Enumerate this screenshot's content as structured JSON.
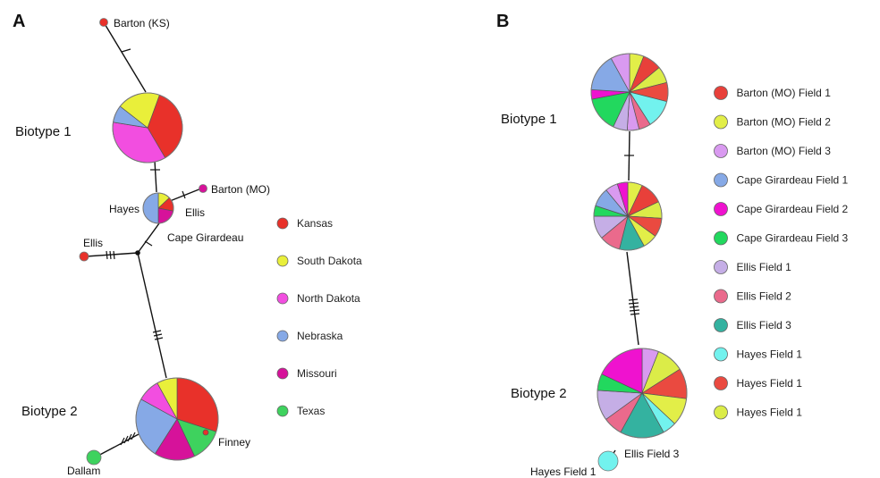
{
  "panel_a": {
    "letter": "A",
    "biotype1_label": "Biotype 1",
    "biotype2_label": "Biotype 2",
    "node_labels": {
      "barton_ks": "Barton (KS)",
      "barton_mo": "Barton (MO)",
      "hayes": "Hayes",
      "ellis_center": "Ellis",
      "cape_girardeau": "Cape Girardeau",
      "ellis_left": "Ellis",
      "finney": "Finney",
      "dallam": "Dallam"
    },
    "legend": [
      {
        "label": "Kansas",
        "color": "#e8312a"
      },
      {
        "label": "South Dakota",
        "color": "#e9ef3a"
      },
      {
        "label": "North Dakota",
        "color": "#f24ee0"
      },
      {
        "label": "Nebraska",
        "color": "#86a9e6"
      },
      {
        "label": "Missouri",
        "color": "#d6129a"
      },
      {
        "label": "Texas",
        "color": "#3ed25e"
      }
    ],
    "nodes": {
      "biotype1": {
        "slices": [
          {
            "state": "Kansas",
            "fraction": 0.36
          },
          {
            "state": "North Dakota",
            "fraction": 0.36
          },
          {
            "state": "Nebraska",
            "fraction": 0.08
          },
          {
            "state": "South Dakota",
            "fraction": 0.2
          }
        ]
      },
      "center": {
        "slices": [
          {
            "state": "South Dakota",
            "fraction": 0.13
          },
          {
            "state": "Kansas",
            "fraction": 0.15
          },
          {
            "state": "Missouri",
            "fraction": 0.22
          },
          {
            "state": "Nebraska",
            "fraction": 0.5
          }
        ]
      },
      "biotype2": {
        "slices": [
          {
            "state": "Kansas",
            "fraction": 0.3
          },
          {
            "state": "Texas",
            "fraction": 0.13
          },
          {
            "state": "Missouri",
            "fraction": 0.16
          },
          {
            "state": "Nebraska",
            "fraction": 0.24
          },
          {
            "state": "North Dakota",
            "fraction": 0.09
          },
          {
            "state": "South Dakota",
            "fraction": 0.08
          }
        ]
      },
      "barton_ks": {
        "color": "#e8312a"
      },
      "barton_mo": {
        "color": "#d6129a"
      },
      "ellis_left": {
        "color": "#e8312a"
      },
      "dallam": {
        "color": "#3ed25e"
      },
      "finney": {
        "color": "#e8312a"
      }
    }
  },
  "panel_b": {
    "letter": "B",
    "biotype1_label": "Biotype 1",
    "biotype2_label": "Biotype 2",
    "node_labels": {
      "ellis_field3": "Ellis Field 3",
      "hayes_field1": "Hayes Field 1"
    },
    "legend": [
      {
        "label": "Barton (MO) Field 1",
        "color": "#e8403a"
      },
      {
        "label": "Barton (MO) Field 2",
        "color": "#e2ee48"
      },
      {
        "label": "Barton (MO) Field 3",
        "color": "#d99af0"
      },
      {
        "label": "Cape Girardeau Field 1",
        "color": "#86a9e6"
      },
      {
        "label": "Cape Girardeau Field 2",
        "color": "#ef12cf"
      },
      {
        "label": "Cape Girardeau Field 3",
        "color": "#22d85e"
      },
      {
        "label": "Ellis Field 1",
        "color": "#c5aee6"
      },
      {
        "label": "Ellis Field 2",
        "color": "#ea6a8c"
      },
      {
        "label": "Ellis Field 3",
        "color": "#34b2a0"
      },
      {
        "label": "Hayes Field 1",
        "color": "#72f2ee"
      },
      {
        "label": "Hayes Field 1",
        "color": "#ea4a40"
      },
      {
        "label": "Hayes Field 1",
        "color": "#dbec48"
      }
    ],
    "nodes": {
      "top": {
        "slices": [
          {
            "color": "#e2ee48",
            "fraction": 0.06
          },
          {
            "color": "#e8403a",
            "fraction": 0.08
          },
          {
            "color": "#dbec48",
            "fraction": 0.07
          },
          {
            "color": "#ea4a40",
            "fraction": 0.08
          },
          {
            "color": "#72f2ee",
            "fraction": 0.12
          },
          {
            "color": "#ea6a8c",
            "fraction": 0.05
          },
          {
            "color": "#d99af0",
            "fraction": 0.05
          },
          {
            "color": "#c5aee6",
            "fraction": 0.06
          },
          {
            "color": "#22d85e",
            "fraction": 0.15
          },
          {
            "color": "#ef12cf",
            "fraction": 0.04
          },
          {
            "color": "#86a9e6",
            "fraction": 0.16
          },
          {
            "color": "#d99af0",
            "fraction": 0.08
          }
        ]
      },
      "middle": {
        "slices": [
          {
            "color": "#e2ee48",
            "fraction": 0.07
          },
          {
            "color": "#e8403a",
            "fraction": 0.11
          },
          {
            "color": "#dbec48",
            "fraction": 0.08
          },
          {
            "color": "#ea4a40",
            "fraction": 0.09
          },
          {
            "color": "#e2ee48",
            "fraction": 0.07
          },
          {
            "color": "#34b2a0",
            "fraction": 0.12
          },
          {
            "color": "#ea6a8c",
            "fraction": 0.1
          },
          {
            "color": "#c5aee6",
            "fraction": 0.11
          },
          {
            "color": "#22d85e",
            "fraction": 0.05
          },
          {
            "color": "#86a9e6",
            "fraction": 0.09
          },
          {
            "color": "#d99af0",
            "fraction": 0.06
          },
          {
            "color": "#ef12cf",
            "fraction": 0.05
          }
        ]
      },
      "bottom": {
        "slices": [
          {
            "color": "#d99af0",
            "fraction": 0.06
          },
          {
            "color": "#dbec48",
            "fraction": 0.1
          },
          {
            "color": "#ea4a40",
            "fraction": 0.11
          },
          {
            "color": "#e2ee48",
            "fraction": 0.1
          },
          {
            "color": "#72f2ee",
            "fraction": 0.05
          },
          {
            "color": "#34b2a0",
            "fraction": 0.16
          },
          {
            "color": "#ea6a8c",
            "fraction": 0.07
          },
          {
            "color": "#c5aee6",
            "fraction": 0.11
          },
          {
            "color": "#22d85e",
            "fraction": 0.06
          },
          {
            "color": "#ef12cf",
            "fraction": 0.18
          }
        ]
      },
      "hayes_small": {
        "color": "#72f2ee"
      }
    }
  }
}
